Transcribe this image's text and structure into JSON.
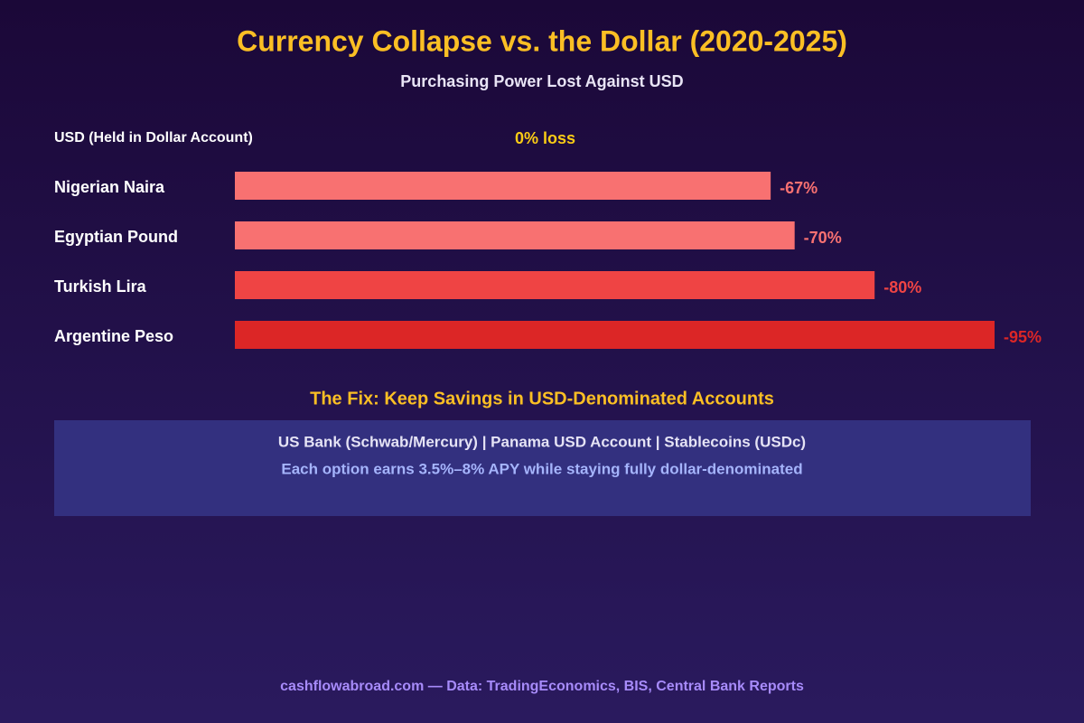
{
  "chart_data": {
    "type": "bar",
    "orientation": "horizontal",
    "title": "Currency Collapse vs. the Dollar (2020-2025)",
    "subtitle": "Purchasing Power Lost Against USD",
    "categories": [
      "USD (Held in Dollar Account)",
      "Nigerian Naira",
      "Egyptian Pound",
      "Turkish Lira",
      "Argentine Peso"
    ],
    "values": [
      0,
      -67,
      -70,
      -80,
      -95
    ],
    "value_labels": [
      "0% loss",
      "-67%",
      "-70%",
      "-80%",
      "-95%"
    ],
    "colors": [
      "#facc15",
      "#f87171",
      "#f87171",
      "#ef4444",
      "#dc2626"
    ]
  },
  "callout": {
    "title": "The Fix: Keep Savings in USD-Denominated Accounts",
    "options": "US Bank (Schwab/Mercury) | Panama USD Account | Stablecoins (USDc)",
    "note": "Each option earns 3.5%–8% APY while staying fully dollar-denominated"
  },
  "footer": "cashflowabroad.com — Data: TradingEconomics, BIS, Central Bank Reports"
}
